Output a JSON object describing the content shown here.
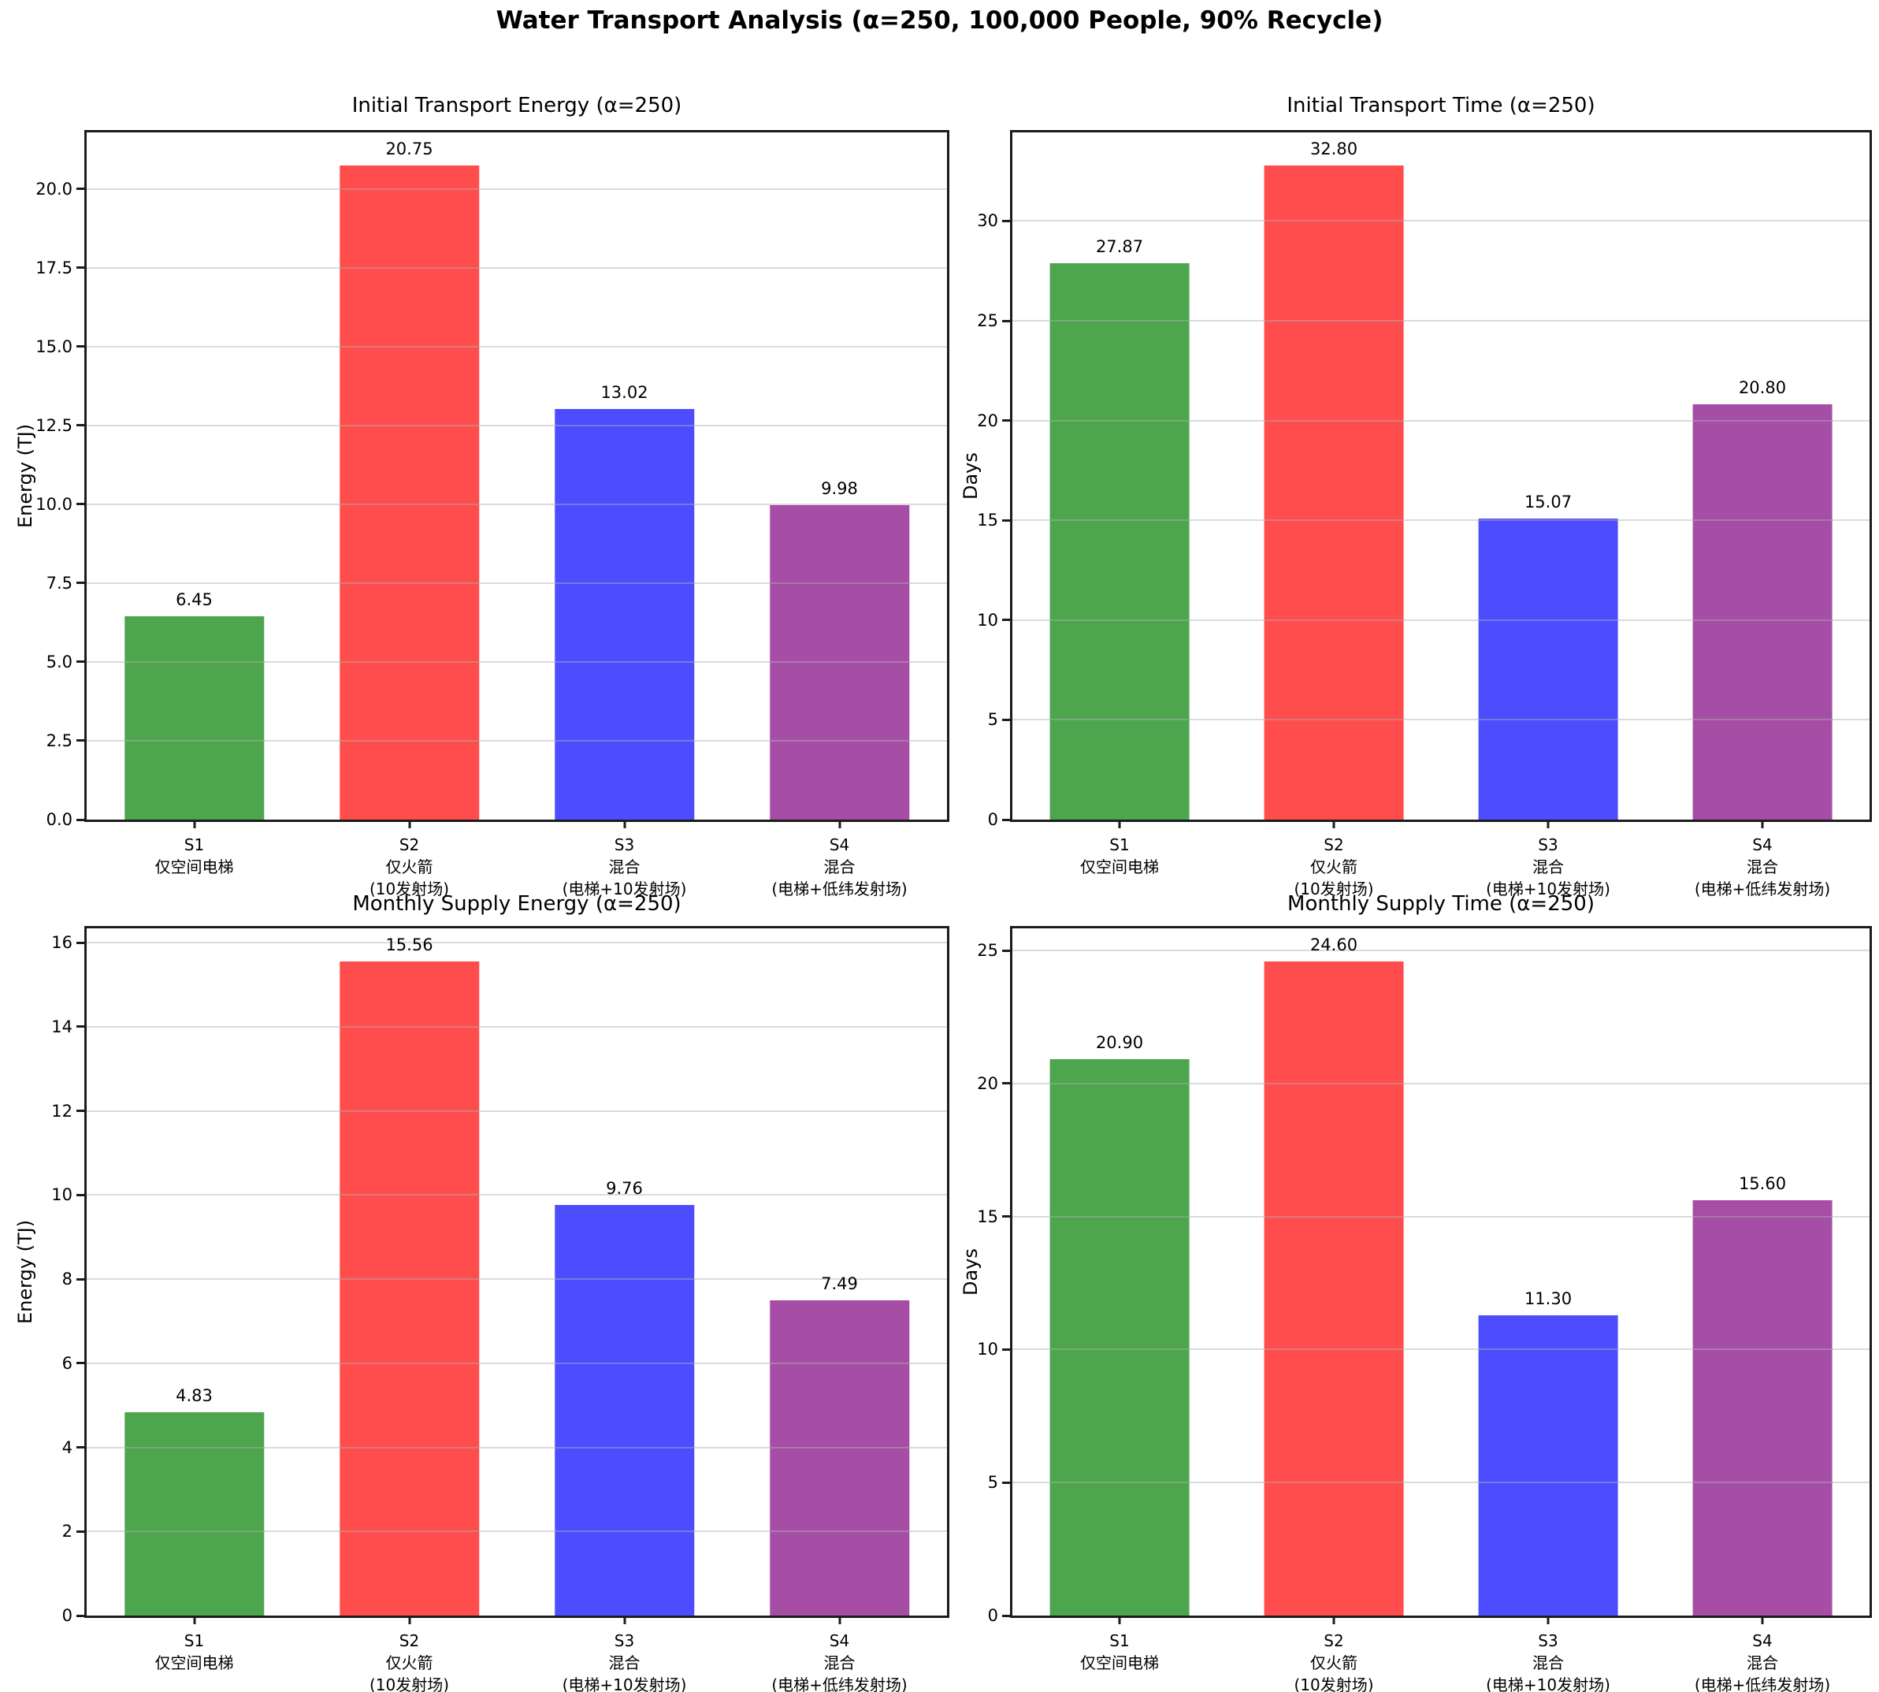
{
  "suptitle": "Water Transport Analysis (α=250, 100,000 People, 90% Recycle)",
  "categories": [
    [
      "S1",
      "仅空间电梯"
    ],
    [
      "S2",
      "仅火箭",
      "(10发射场)"
    ],
    [
      "S3",
      "混合",
      "(电梯+10发射场)"
    ],
    [
      "S4",
      "混合",
      "(电梯+低纬发射场)"
    ]
  ],
  "palette": [
    "#4DA64D",
    "#FF4D4D",
    "#4D4DFF",
    "#A64DA6"
  ],
  "chart_data": [
    {
      "type": "bar",
      "title": "Initial Transport Energy (α=250)",
      "ylabel": "Energy (TJ)",
      "xlabel": "",
      "categories": [
        "S1 仅空间电梯",
        "S2 仅火箭 (10发射场)",
        "S3 混合 (电梯+10发射场)",
        "S4 混合 (电梯+低纬发射场)"
      ],
      "values": [
        6.45,
        20.75,
        13.02,
        9.98
      ],
      "value_labels": [
        "6.45",
        "20.75",
        "13.02",
        "9.98"
      ],
      "yticks": [
        0,
        2.5,
        5,
        7.5,
        10,
        12.5,
        15,
        17.5,
        20
      ],
      "ytick_labels": [
        "0.0",
        "2.5",
        "5.0",
        "7.5",
        "10.0",
        "12.5",
        "15.0",
        "17.5",
        "20.0"
      ],
      "ylim": [
        0,
        21.79
      ],
      "grid": true,
      "legend": "none"
    },
    {
      "type": "bar",
      "title": "Initial Transport Time (α=250)",
      "ylabel": "Days",
      "xlabel": "",
      "categories": [
        "S1 仅空间电梯",
        "S2 仅火箭 (10发射场)",
        "S3 混合 (电梯+10发射场)",
        "S4 混合 (电梯+低纬发射场)"
      ],
      "values": [
        27.87,
        32.8,
        15.07,
        20.8
      ],
      "value_labels": [
        "27.87",
        "32.80",
        "15.07",
        "20.80"
      ],
      "yticks": [
        0,
        5,
        10,
        15,
        20,
        25,
        30
      ],
      "ytick_labels": [
        "0",
        "5",
        "10",
        "15",
        "20",
        "25",
        "30"
      ],
      "ylim": [
        0,
        34.44
      ],
      "grid": true,
      "legend": "none"
    },
    {
      "type": "bar",
      "title": "Monthly Supply Energy (α=250)",
      "ylabel": "Energy (TJ)",
      "xlabel": "",
      "categories": [
        "S1 仅空间电梯",
        "S2 仅火箭 (10发射场)",
        "S3 混合 (电梯+10发射场)",
        "S4 混合 (电梯+低纬发射场)"
      ],
      "values": [
        4.83,
        15.56,
        9.76,
        7.49
      ],
      "value_labels": [
        "4.83",
        "15.56",
        "9.76",
        "7.49"
      ],
      "yticks": [
        0,
        2,
        4,
        6,
        8,
        10,
        12,
        14,
        16
      ],
      "ytick_labels": [
        "0",
        "2",
        "4",
        "6",
        "8",
        "10",
        "12",
        "14",
        "16"
      ],
      "ylim": [
        0,
        16.34
      ],
      "grid": true,
      "legend": "none"
    },
    {
      "type": "bar",
      "title": "Monthly Supply Time (α=250)",
      "ylabel": "Days",
      "xlabel": "",
      "categories": [
        "S1 仅空间电梯",
        "S2 仅火箭 (10发射场)",
        "S3 混合 (电梯+10发射场)",
        "S4 混合 (电梯+低纬发射场)"
      ],
      "values": [
        20.9,
        24.6,
        11.3,
        15.6
      ],
      "value_labels": [
        "20.90",
        "24.60",
        "11.30",
        "15.60"
      ],
      "yticks": [
        0,
        5,
        10,
        15,
        20,
        25
      ],
      "ytick_labels": [
        "0",
        "5",
        "10",
        "15",
        "20",
        "25"
      ],
      "ylim": [
        0,
        25.83
      ],
      "grid": true,
      "legend": "none"
    }
  ]
}
